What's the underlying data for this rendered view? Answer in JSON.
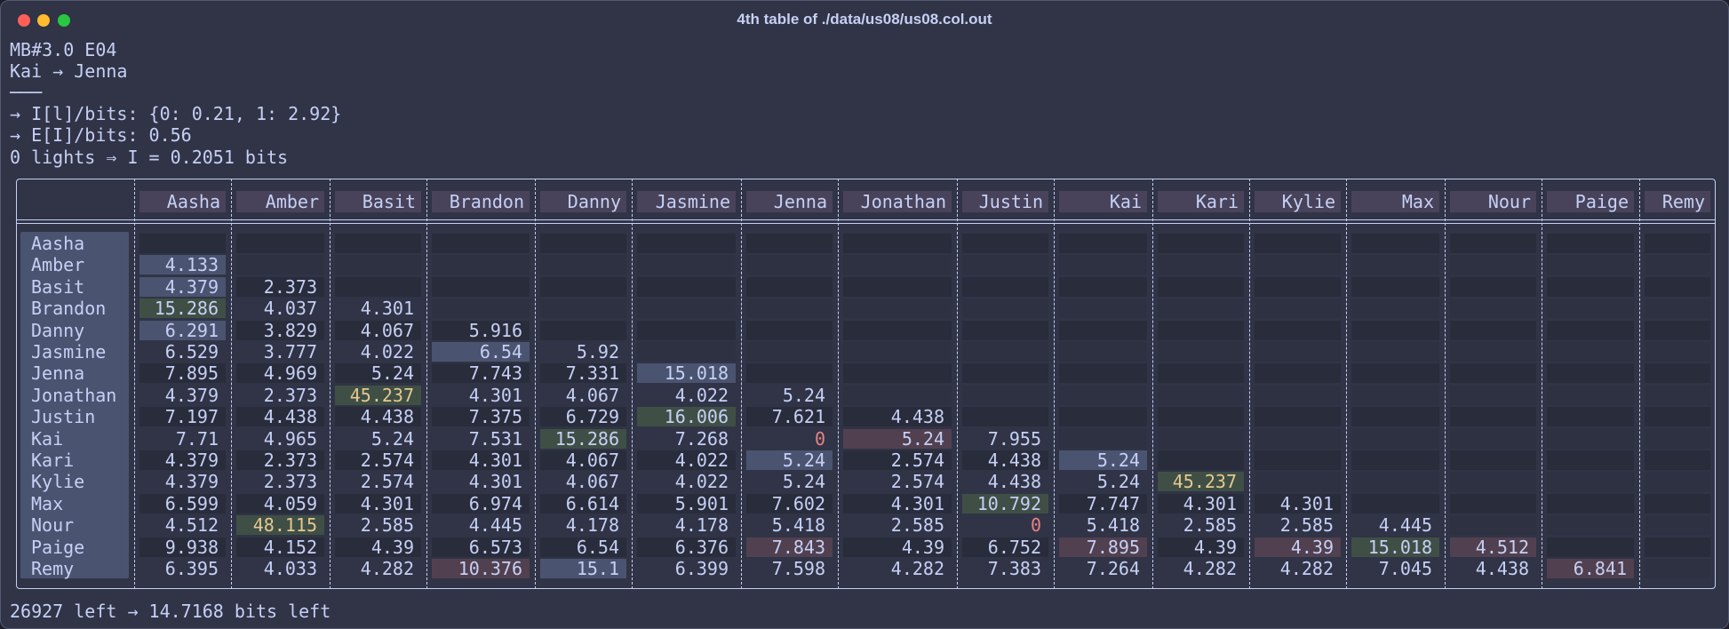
{
  "window": {
    "title": "4th table of ./data/us08/us08.col.out"
  },
  "lines": [
    "MB#3.0 E04",
    "Kai → Jenna",
    "───",
    "→ I[l]/bits: {0: 0.21, 1: 2.92}",
    "→ E[I]/bits: 0.56",
    "0 lights ⇒ I = 0.2051 bits"
  ],
  "table": {
    "columns": [
      "Aasha",
      "Amber",
      "Basit",
      "Brandon",
      "Danny",
      "Jasmine",
      "Jenna",
      "Jonathan",
      "Justin",
      "Kai",
      "Kari",
      "Kylie",
      "Max",
      "Nour",
      "Paige",
      "Remy"
    ],
    "rows": [
      {
        "label": "Aasha",
        "cells": []
      },
      {
        "label": "Amber",
        "cells": [
          4.133
        ]
      },
      {
        "label": "Basit",
        "cells": [
          4.379,
          2.373
        ]
      },
      {
        "label": "Brandon",
        "cells": [
          15.286,
          4.037,
          4.301
        ]
      },
      {
        "label": "Danny",
        "cells": [
          6.291,
          3.829,
          4.067,
          5.916
        ]
      },
      {
        "label": "Jasmine",
        "cells": [
          6.529,
          3.777,
          4.022,
          6.54,
          5.92
        ]
      },
      {
        "label": "Jenna",
        "cells": [
          7.895,
          4.969,
          5.24,
          7.743,
          7.331,
          15.018
        ]
      },
      {
        "label": "Jonathan",
        "cells": [
          4.379,
          2.373,
          45.237,
          4.301,
          4.067,
          4.022,
          5.24
        ]
      },
      {
        "label": "Justin",
        "cells": [
          7.197,
          4.438,
          4.438,
          7.375,
          6.729,
          16.006,
          7.621,
          4.438
        ]
      },
      {
        "label": "Kai",
        "cells": [
          7.71,
          4.965,
          5.24,
          7.531,
          15.286,
          7.268,
          0,
          5.24,
          7.955
        ]
      },
      {
        "label": "Kari",
        "cells": [
          4.379,
          2.373,
          2.574,
          4.301,
          4.067,
          4.022,
          5.24,
          2.574,
          4.438,
          5.24
        ]
      },
      {
        "label": "Kylie",
        "cells": [
          4.379,
          2.373,
          2.574,
          4.301,
          4.067,
          4.022,
          5.24,
          2.574,
          4.438,
          5.24,
          45.237
        ]
      },
      {
        "label": "Max",
        "cells": [
          6.599,
          4.059,
          4.301,
          6.974,
          6.614,
          5.901,
          7.602,
          4.301,
          10.792,
          7.747,
          4.301,
          4.301
        ]
      },
      {
        "label": "Nour",
        "cells": [
          4.512,
          48.115,
          2.585,
          4.445,
          4.178,
          4.178,
          5.418,
          2.585,
          0,
          5.418,
          2.585,
          2.585,
          4.445
        ]
      },
      {
        "label": "Paige",
        "cells": [
          9.938,
          4.152,
          4.39,
          6.573,
          6.54,
          6.376,
          7.843,
          4.39,
          6.752,
          7.895,
          4.39,
          4.39,
          15.018,
          4.512
        ]
      },
      {
        "label": "Remy",
        "cells": [
          6.395,
          4.033,
          4.282,
          10.376,
          15.1,
          6.399,
          7.598,
          4.282,
          7.383,
          7.264,
          4.282,
          4.282,
          7.045,
          4.438,
          6.841
        ]
      }
    ]
  },
  "footer": "26927 left → 14.7168 bits left"
}
